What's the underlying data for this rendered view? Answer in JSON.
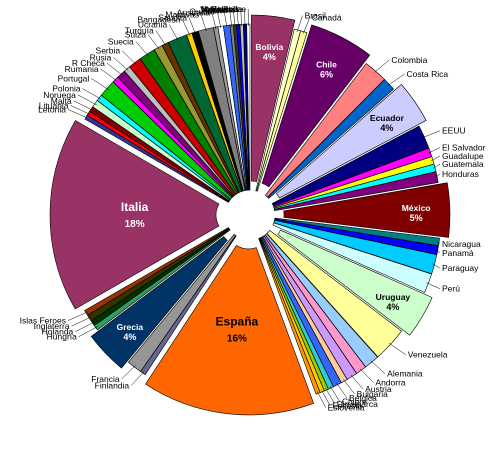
{
  "chart_data": {
    "type": "pie",
    "title": "",
    "unit": "%",
    "slices": [
      {
        "name": "Bolivia",
        "value": 4,
        "color": "#993366",
        "label": "Bolivia",
        "value_label": "4%"
      },
      {
        "name": "Brasil",
        "value": 0.6,
        "color": "#FFFFCC",
        "label": "Brasil"
      },
      {
        "name": "Canadá",
        "value": 0.6,
        "color": "#FFFF99",
        "label": "Canadá"
      },
      {
        "name": "Chile",
        "value": 6,
        "color": "#660066",
        "label": "Chile",
        "value_label": "6%"
      },
      {
        "name": "Colombia",
        "value": 2.2,
        "color": "#FF8080",
        "label": "Colombia"
      },
      {
        "name": "Costa Rica",
        "value": 1.2,
        "color": "#0066CC",
        "label": "Costa Rica"
      },
      {
        "name": "Ecuador",
        "value": 4,
        "color": "#CCCCFF",
        "label": "Ecuador",
        "value_label": "4%"
      },
      {
        "name": "EEUU",
        "value": 2.2,
        "color": "#000080",
        "label": "EEUU"
      },
      {
        "name": "El Salvador",
        "value": 0.8,
        "color": "#FF00FF",
        "label": "El Salvador"
      },
      {
        "name": "Guadalupe",
        "value": 0.7,
        "color": "#FFFF00",
        "label": "Guadalupe"
      },
      {
        "name": "Guatemala",
        "value": 0.7,
        "color": "#00FFFF",
        "label": "Guatemala"
      },
      {
        "name": "Honduras",
        "value": 1.0,
        "color": "#800080",
        "label": "Honduras"
      },
      {
        "name": "México",
        "value": 5,
        "color": "#800000",
        "label": "México",
        "value_label": "5%"
      },
      {
        "name": "Nicaragua",
        "value": 0.7,
        "color": "#008080",
        "label": "Nicaragua"
      },
      {
        "name": "Panamá",
        "value": 0.8,
        "color": "#0000FF",
        "label": "Panamá"
      },
      {
        "name": "Paraguay",
        "value": 1.8,
        "color": "#00CCFF",
        "label": "Paraguay"
      },
      {
        "name": "Perú",
        "value": 1.8,
        "color": "#CCFFFF",
        "label": "Perú"
      },
      {
        "name": "Uruguay",
        "value": 4,
        "color": "#CCFFCC",
        "label": "Uruguay",
        "value_label": "4%"
      },
      {
        "name": "Venezuela",
        "value": 3.2,
        "color": "#FFFF99",
        "label": "Venezuela"
      },
      {
        "name": "Alemania",
        "value": 1.4,
        "color": "#99CCFF",
        "label": "Alemania"
      },
      {
        "name": "Andorra",
        "value": 1.0,
        "color": "#FF99CC",
        "label": "Andorra"
      },
      {
        "name": "Austria",
        "value": 1.0,
        "color": "#CC99FF",
        "label": "Austria"
      },
      {
        "name": "Bulgaria",
        "value": 0.6,
        "color": "#FFCC99",
        "label": "Bulgaria"
      },
      {
        "name": "Bélgica",
        "value": 0.8,
        "color": "#3366FF",
        "label": "Bélgica"
      },
      {
        "name": "Chipre",
        "value": 0.5,
        "color": "#33CCCC",
        "label": "Chipre"
      },
      {
        "name": "Dinamarca",
        "value": 0.4,
        "color": "#99CC00",
        "label": "Dinamarca"
      },
      {
        "name": "Escocia",
        "value": 0.4,
        "color": "#FFCC00",
        "label": "Escocia"
      },
      {
        "name": "Eslovenia",
        "value": 0.4,
        "color": "#FF9900",
        "label": "Eslovenia"
      },
      {
        "name": "España",
        "value": 16,
        "color": "#FF6600",
        "label": "España",
        "value_label": "16%"
      },
      {
        "name": "Finlandia",
        "value": 0.5,
        "color": "#666699",
        "label": "Finlandia"
      },
      {
        "name": "Francia",
        "value": 1.4,
        "color": "#969696",
        "label": "Francia"
      },
      {
        "name": "Grecia",
        "value": 4,
        "color": "#003366",
        "label": "Grecia",
        "value_label": "4%"
      },
      {
        "name": "Hungría",
        "value": 0.5,
        "color": "#339966",
        "label": "Hungría"
      },
      {
        "name": "Holanda",
        "value": 0.5,
        "color": "#003300",
        "label": "Holanda"
      },
      {
        "name": "Inglaterra",
        "value": 0.6,
        "color": "#333300",
        "label": "Inglaterra"
      },
      {
        "name": "Islas Feroes",
        "value": 0.5,
        "color": "#993300",
        "label": "Islas Feroes"
      },
      {
        "name": "Italia",
        "value": 18,
        "color": "#993366",
        "label": "Italia",
        "value_label": "18%"
      },
      {
        "name": "Letonia",
        "value": 0.4,
        "color": "#333399",
        "label": "Letonia"
      },
      {
        "name": "Lituania",
        "value": 0.4,
        "color": "#FF0000",
        "label": "Lituania"
      },
      {
        "name": "Malta",
        "value": 0.5,
        "color": "#800000",
        "label": "Malta"
      },
      {
        "name": "Noruega",
        "value": 0.7,
        "color": "#CCFFCC",
        "label": "Noruega"
      },
      {
        "name": "Polonia",
        "value": 0.6,
        "color": "#00FFFF",
        "label": "Polonia"
      },
      {
        "name": "Portugal",
        "value": 1.6,
        "color": "#00CC00",
        "label": "Portugal"
      },
      {
        "name": "Rumania",
        "value": 0.6,
        "color": "#FF00FF",
        "label": "Rumania"
      },
      {
        "name": "R Checa",
        "value": 0.8,
        "color": "#800080",
        "label": "R Checa"
      },
      {
        "name": "Rusia",
        "value": 0.6,
        "color": "#C0C0C0",
        "label": "Rusia"
      },
      {
        "name": "Serbia",
        "value": 1.2,
        "color": "#CC0000",
        "label": "Serbia"
      },
      {
        "name": "Suecia",
        "value": 1.5,
        "color": "#008000",
        "label": "Suecia"
      },
      {
        "name": "Suiza",
        "value": 0.8,
        "color": "#999933",
        "label": "Suiza"
      },
      {
        "name": "Turquía",
        "value": 0.6,
        "color": "#663300",
        "label": "Turquía"
      },
      {
        "name": "Ucrania",
        "value": 1.8,
        "color": "#006633",
        "label": "Ucrania"
      },
      {
        "name": "Bangadesh",
        "value": 0.5,
        "color": "#FFCC00",
        "label": "Bangadesh"
      },
      {
        "name": "Saudita",
        "value": 0.6,
        "color": "#000000",
        "label": "Saudita"
      },
      {
        "name": "Maldivas",
        "value": 1.4,
        "color": "#808080",
        "label": "Maldivas"
      },
      {
        "name": "Australia",
        "value": 0.4,
        "color": "#999999",
        "label": "Australia"
      },
      {
        "name": "Quatar",
        "value": 0.5,
        "color": "#FFFFFF",
        "label": "Quatar"
      },
      {
        "name": "Japón",
        "value": 0.6,
        "color": "#3366FF",
        "label": "Japón"
      },
      {
        "name": "Israel",
        "value": 0.3,
        "color": "#808080",
        "label": "Israel"
      },
      {
        "name": "Vietnam",
        "value": 0.3,
        "color": "#333333",
        "label": "Vietnam"
      },
      {
        "name": "Malasia",
        "value": 0.3,
        "color": "#0000FF",
        "label": "Malasia"
      },
      {
        "name": "Indonesia",
        "value": 0.3,
        "color": "#C0C0C0",
        "label": "Indonesia"
      },
      {
        "name": "N. Zelanda",
        "value": 0.3,
        "color": "#000080",
        "label": "N. Zelanda"
      },
      {
        "name": "Belize",
        "value": 0.3,
        "color": "#FFFFFF",
        "label": "Belize"
      }
    ],
    "legend": "none",
    "label_placement": "outside with leader lines"
  }
}
